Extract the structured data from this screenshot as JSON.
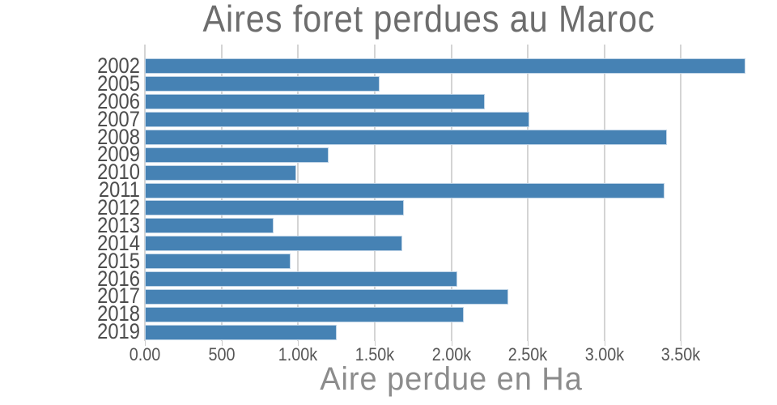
{
  "chart_data": {
    "type": "bar",
    "orientation": "horizontal",
    "title": "Aires foret perdues au Maroc",
    "xlabel": "Aire perdue en Ha",
    "ylabel": "",
    "categories": [
      "2002",
      "2005",
      "2006",
      "2007",
      "2008",
      "2009",
      "2010",
      "2011",
      "2012",
      "2013",
      "2014",
      "2015",
      "2016",
      "2017",
      "2018",
      "2019"
    ],
    "values": [
      3920,
      1530,
      2220,
      2510,
      3410,
      1200,
      990,
      3390,
      1690,
      840,
      1680,
      950,
      2040,
      2370,
      2080,
      1250
    ],
    "xlim": [
      0,
      4000
    ],
    "xticks": {
      "values": [
        0,
        500,
        1000,
        1500,
        2000,
        2500,
        3000,
        3500
      ],
      "labels": [
        "0.00",
        "500",
        "1.00k",
        "1.50k",
        "2.00k",
        "2.50k",
        "3.00k",
        "3.50k"
      ]
    },
    "grid": true,
    "legend": false,
    "colors": {
      "bar": "#4682b4",
      "bar_border": "#bed3e6",
      "grid": "#d4d4d4",
      "tick_mark": "#cccccc",
      "title": "#6d6d6d",
      "axis_title": "#8c8c8c",
      "tick_label": "#565656",
      "category_label": "#4d4d4d",
      "background": "#ffffff"
    }
  }
}
